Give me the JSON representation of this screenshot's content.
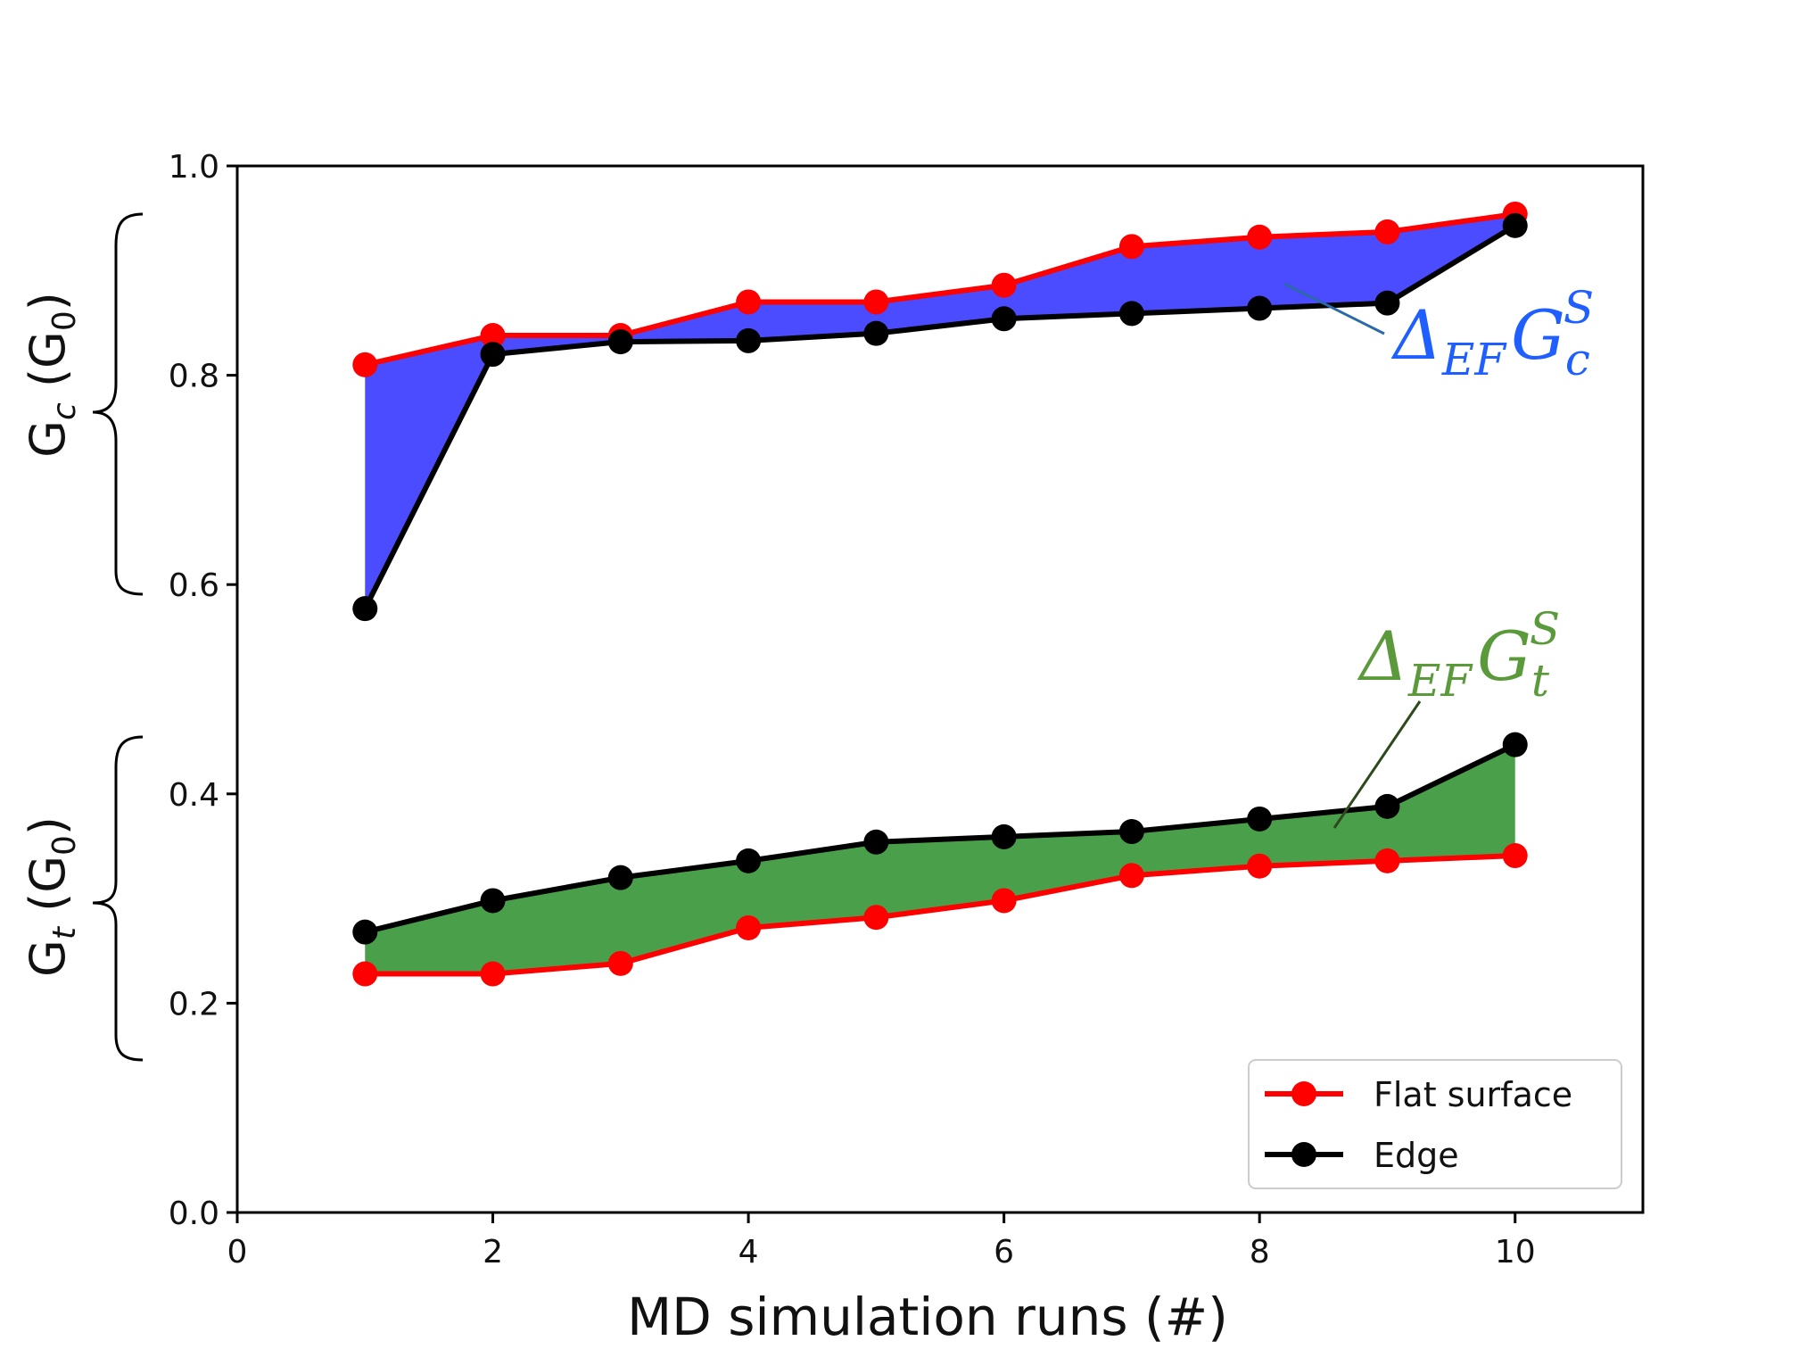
{
  "chart_data": {
    "type": "line",
    "x": [
      1,
      2,
      3,
      4,
      5,
      6,
      7,
      8,
      9,
      10
    ],
    "series": [
      {
        "name": "Flat surface",
        "group": "Gc",
        "color": "#ff0000",
        "values": [
          0.81,
          0.838,
          0.838,
          0.87,
          0.87,
          0.886,
          0.923,
          0.932,
          0.937,
          0.954
        ]
      },
      {
        "name": "Edge",
        "group": "Gc",
        "color": "#000000",
        "values": [
          0.577,
          0.82,
          0.832,
          0.833,
          0.84,
          0.854,
          0.859,
          0.864,
          0.869,
          0.943
        ]
      },
      {
        "name": "Flat surface",
        "group": "Gt",
        "color": "#ff0000",
        "values": [
          0.228,
          0.228,
          0.238,
          0.272,
          0.282,
          0.298,
          0.322,
          0.331,
          0.336,
          0.341
        ]
      },
      {
        "name": "Edge",
        "group": "Gt",
        "color": "#000000",
        "values": [
          0.268,
          0.298,
          0.32,
          0.336,
          0.354,
          0.359,
          0.364,
          0.376,
          0.388,
          0.447
        ]
      }
    ],
    "fills": [
      {
        "between": "Gc",
        "color": "#4b4bff"
      },
      {
        "between": "Gt",
        "color": "#4aa04a"
      }
    ],
    "xlim": [
      0,
      11
    ],
    "ylim": [
      0.0,
      1.0
    ],
    "xticks": [
      "0",
      "2",
      "4",
      "6",
      "8",
      "10"
    ],
    "xtick_values": [
      0,
      2,
      4,
      6,
      8,
      10
    ],
    "yticks": [
      "0.0",
      "0.2",
      "0.4",
      "0.6",
      "0.8",
      "1.0"
    ],
    "ytick_values": [
      0.0,
      0.2,
      0.4,
      0.6,
      0.8,
      1.0
    ],
    "xlabel": "MD simulation runs (#)",
    "ylabel_top": {
      "main": "G",
      "sub": "c",
      "unit": " (G",
      "unit_sub": "0",
      "close": ")"
    },
    "ylabel_bottom": {
      "main": "G",
      "sub": "t",
      "unit": " (G",
      "unit_sub": "0",
      "close": ")"
    },
    "legend": {
      "position": "bottom-right",
      "entries": [
        {
          "label": "Flat surface",
          "color": "#ff0000"
        },
        {
          "label": "Edge",
          "color": "#000000"
        }
      ]
    },
    "annotations": [
      {
        "id": "gc",
        "delta": "Δ",
        "sub1": "EF",
        "g": "G",
        "sub2": "c",
        "sup": "S",
        "color": "#1f5fff",
        "points_to_x": 8.2,
        "points_to_y": 0.885
      },
      {
        "id": "gt",
        "delta": "Δ",
        "sub1": "EF",
        "g": "G",
        "sub2": "t",
        "sup": "S",
        "color": "#5a9a3a",
        "points_to_x": 8.6,
        "points_to_y": 0.365
      }
    ]
  }
}
